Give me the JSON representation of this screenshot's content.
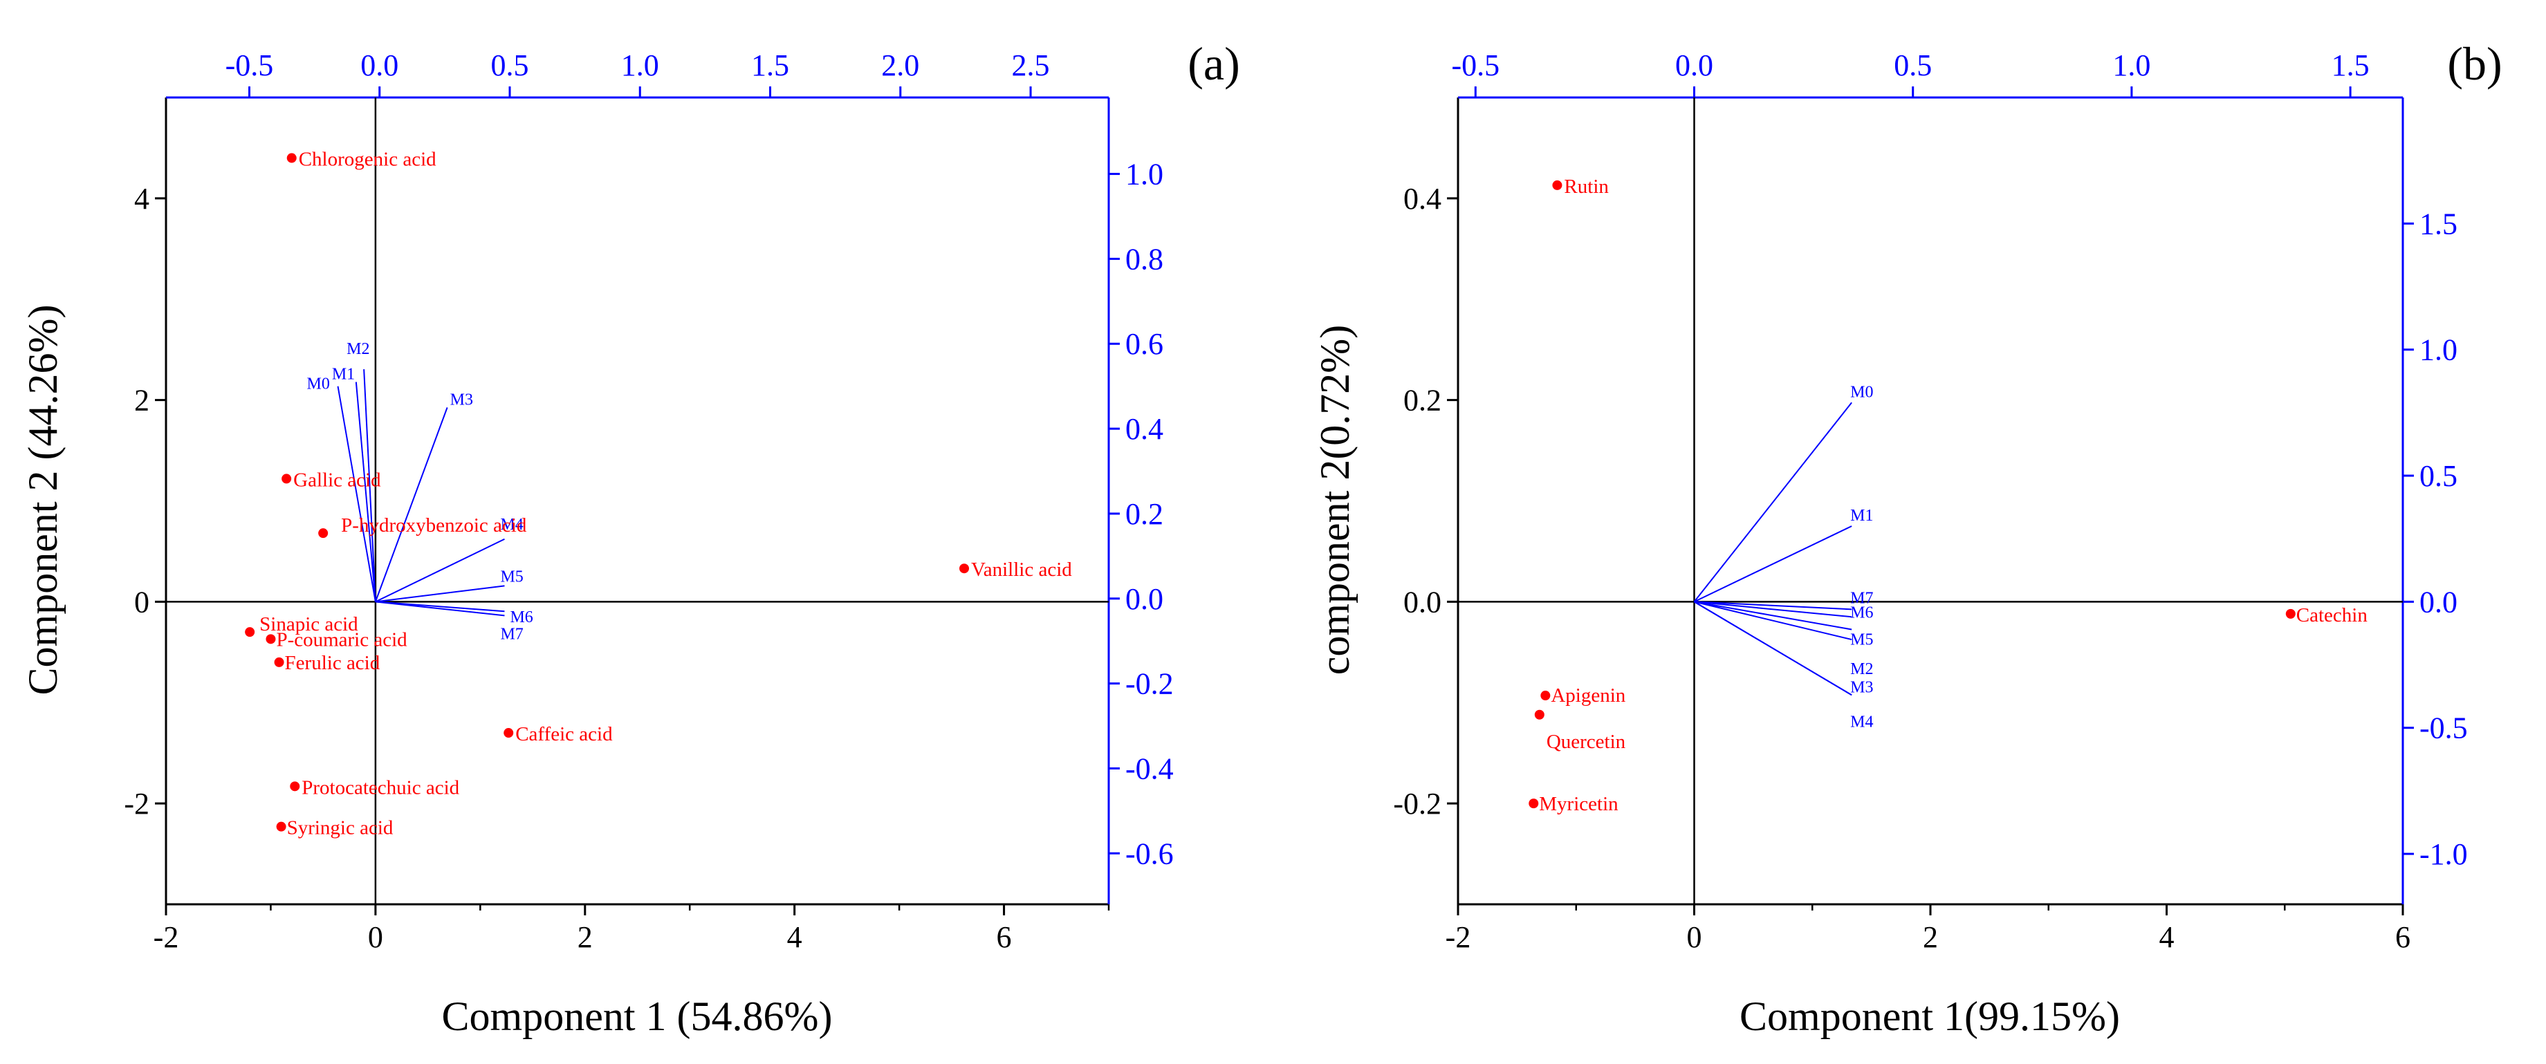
{
  "chart_data": [
    {
      "type": "scatter",
      "variant": "biplot",
      "panel_label": "(a)",
      "xlabel": "Component 1 (54.86%)",
      "ylabel": "Component 2 (44.26%)",
      "xlim": [
        -2,
        7
      ],
      "ylim": [
        -3,
        5
      ],
      "x_ticks": [
        -2,
        0,
        2,
        4,
        6
      ],
      "y_ticks": [
        -2,
        0,
        2,
        4
      ],
      "top_xlim": [
        -0.82,
        2.8
      ],
      "top_ticks": [
        "-0.5",
        "0.0",
        "0.5",
        "1.0",
        "1.5",
        "2.0",
        "2.5"
      ],
      "right_ylim": [
        -0.72,
        1.18
      ],
      "right_ticks": [
        "-0.6",
        "-0.4",
        "-0.2",
        "0.0",
        "0.2",
        "0.4",
        "0.6",
        "0.8",
        "1.0"
      ],
      "points": [
        {
          "name": "Chlorogenic acid",
          "x": -0.8,
          "y": 4.4
        },
        {
          "name": "Gallic acid",
          "x": -0.85,
          "y": 1.22
        },
        {
          "name": "P-hydroxybenzoic acid",
          "x": -0.5,
          "y": 0.68
        },
        {
          "name": "Vanillic acid",
          "x": 5.62,
          "y": 0.33
        },
        {
          "name": "Sinapic acid",
          "x": -1.2,
          "y": -0.3
        },
        {
          "name": "P-coumaric acid",
          "x": -1.0,
          "y": -0.37
        },
        {
          "name": "Ferulic acid",
          "x": -0.92,
          "y": -0.6
        },
        {
          "name": "Caffeic acid",
          "x": 1.27,
          "y": -1.3
        },
        {
          "name": "Protocatechuic acid",
          "x": -0.77,
          "y": -1.83
        },
        {
          "name": "Syringic acid",
          "x": -0.9,
          "y": -2.23
        }
      ],
      "loadings": [
        {
          "name": "M0",
          "x": -0.16,
          "y": 0.5
        },
        {
          "name": "M1",
          "x": -0.09,
          "y": 0.51
        },
        {
          "name": "M2",
          "x": -0.06,
          "y": 0.54
        },
        {
          "name": "M3",
          "x": 0.26,
          "y": 0.45
        },
        {
          "name": "M4",
          "x": 0.48,
          "y": 0.14
        },
        {
          "name": "M5",
          "x": 0.48,
          "y": 0.03
        },
        {
          "name": "M6",
          "x": 0.48,
          "y": -0.03
        },
        {
          "name": "M7",
          "x": 0.48,
          "y": -0.04
        }
      ]
    },
    {
      "type": "scatter",
      "variant": "biplot",
      "panel_label": "(b)",
      "xlabel": "Component 1(99.15%)",
      "ylabel": "component 2(0.72%)",
      "xlim": [
        -2,
        6
      ],
      "ylim": [
        -0.3,
        0.5
      ],
      "x_ticks": [
        -2,
        0,
        2,
        4,
        6
      ],
      "y_ticks": [
        "-0.2",
        "0.0",
        "0.2",
        "0.4"
      ],
      "top_xlim": [
        -0.54,
        1.62
      ],
      "top_ticks": [
        "-0.5",
        "0.0",
        "0.5",
        "1.0",
        "1.5"
      ],
      "right_ylim": [
        -1.2,
        2.0
      ],
      "right_ticks": [
        "-1.0",
        "-0.5",
        "0.0",
        "0.5",
        "1.0",
        "1.5"
      ],
      "points": [
        {
          "name": "Rutin",
          "x": -1.16,
          "y": 0.413
        },
        {
          "name": "Catechin",
          "x": 5.05,
          "y": -0.012
        },
        {
          "name": "Apigenin",
          "x": -1.26,
          "y": -0.093
        },
        {
          "name": "Quercetin",
          "x": -1.31,
          "y": -0.112
        },
        {
          "name": "Myricetin",
          "x": -1.36,
          "y": -0.2
        }
      ],
      "loadings": [
        {
          "name": "M0",
          "x": 0.36,
          "y": 0.79
        },
        {
          "name": "M1",
          "x": 0.36,
          "y": 0.3
        },
        {
          "name": "M7",
          "x": 0.36,
          "y": -0.03
        },
        {
          "name": "M6",
          "x": 0.36,
          "y": -0.06
        },
        {
          "name": "M5",
          "x": 0.36,
          "y": -0.11
        },
        {
          "name": "M2",
          "x": 0.36,
          "y": -0.15
        },
        {
          "name": "M3",
          "x": 0.36,
          "y": -0.37
        },
        {
          "name": "M4",
          "x": 0.36,
          "y": -0.37
        }
      ]
    }
  ]
}
